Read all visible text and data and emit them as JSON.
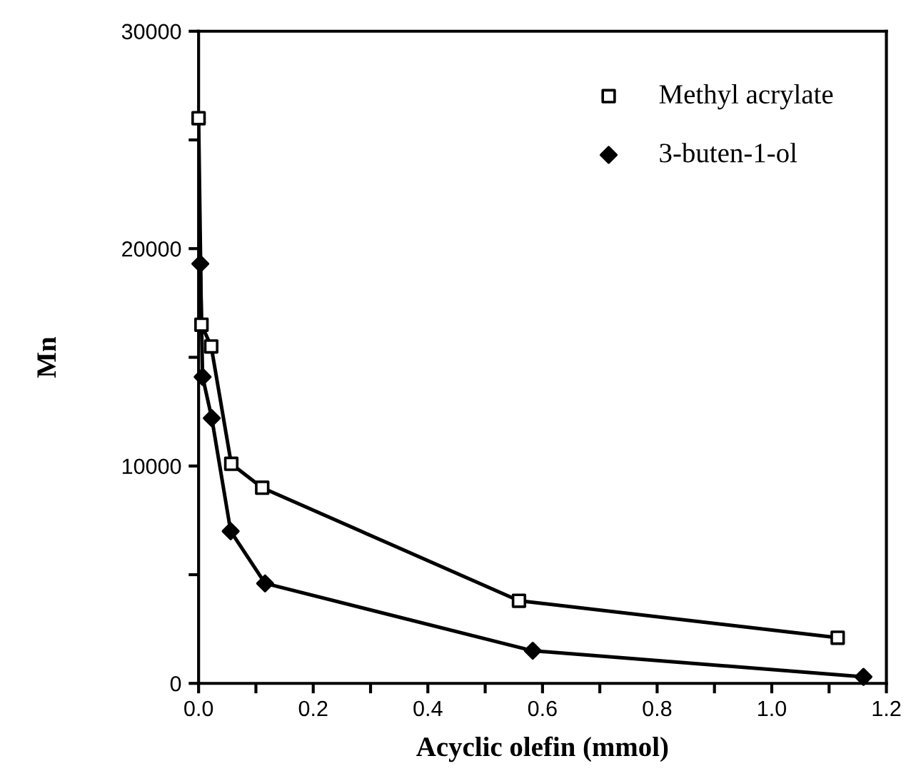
{
  "chart_data": {
    "type": "line",
    "xlabel": "Acyclic olefin (mmol)",
    "ylabel": "Mn",
    "series": [
      {
        "name": "Methyl acrylate",
        "color": "#000000",
        "marker": "square",
        "x": [
          0.0,
          0.005,
          0.022,
          0.057,
          0.111,
          0.559,
          1.115
        ],
        "values": [
          26000,
          16500,
          15500,
          10100,
          9000,
          3800,
          2100
        ]
      },
      {
        "name": "3-buten-1-ol",
        "color": "#000000",
        "marker": "diamond",
        "x": [
          0.003,
          0.007,
          0.023,
          0.056,
          0.116,
          0.583,
          1.16
        ],
        "values": [
          19300,
          14100,
          12200,
          7000,
          4600,
          1500,
          300
        ]
      }
    ],
    "xlim": [
      0,
      1.2
    ],
    "ylim": [
      0,
      30000
    ],
    "xticks": [
      {
        "value": 0.0,
        "label": "0.0"
      },
      {
        "value": 0.1,
        "label": null
      },
      {
        "value": 0.2,
        "label": "0.2"
      },
      {
        "value": 0.3,
        "label": null
      },
      {
        "value": 0.4,
        "label": "0.4"
      },
      {
        "value": 0.5,
        "label": null
      },
      {
        "value": 0.6,
        "label": "0.6"
      },
      {
        "value": 0.7,
        "label": null
      },
      {
        "value": 0.8,
        "label": "0.8"
      },
      {
        "value": 0.9,
        "label": null
      },
      {
        "value": 1.0,
        "label": "1.0"
      },
      {
        "value": 1.1,
        "label": null
      },
      {
        "value": 1.2,
        "label": "1.2"
      }
    ],
    "yticks": [
      0,
      {
        "value": 5000,
        "label": null
      },
      10000,
      {
        "value": 15000,
        "label": null
      },
      20000,
      {
        "value": 25000,
        "label": null
      },
      30000
    ],
    "legend": "top right",
    "grid": false,
    "line_style": "solid"
  }
}
